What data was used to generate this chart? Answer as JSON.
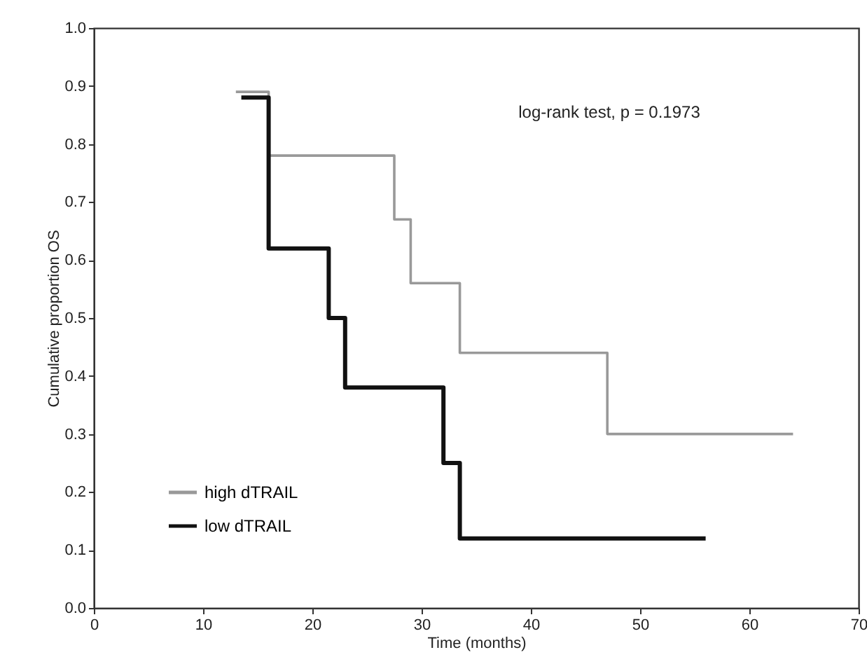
{
  "chart_data": {
    "type": "step",
    "xlabel": "Time (months)",
    "ylabel": "Cumulative proportion OS",
    "annotations": [
      "log-rank test, p = 0.1973"
    ],
    "series": [
      {
        "name": "high  dTRAIL",
        "color": "#999999",
        "x": [
          13,
          16,
          27.5,
          29,
          33.5,
          47,
          64
        ],
        "values": [
          0.89,
          0.78,
          0.67,
          0.56,
          0.44,
          0.3,
          0.3
        ]
      },
      {
        "name": "low  dTRAIL",
        "color": "#111111",
        "x": [
          13.5,
          16,
          21.5,
          23,
          32,
          33.5,
          56
        ],
        "values": [
          0.88,
          0.62,
          0.5,
          0.38,
          0.25,
          0.12,
          0.12
        ]
      }
    ],
    "xlim": [
      0,
      70
    ],
    "xticks": [
      0,
      10,
      20,
      30,
      40,
      50,
      60,
      70
    ],
    "ylim": [
      0,
      1
    ],
    "yticks": [
      {
        "value": 0,
        "label": "0.0"
      },
      0.1,
      0.2,
      0.3,
      0.4,
      0.5,
      0.6,
      0.7,
      0.8,
      0.9,
      {
        "value": 1,
        "label": "1.0"
      }
    ],
    "grid": false,
    "legend": "bottom left",
    "marker": "none",
    "line_style": "solid"
  }
}
